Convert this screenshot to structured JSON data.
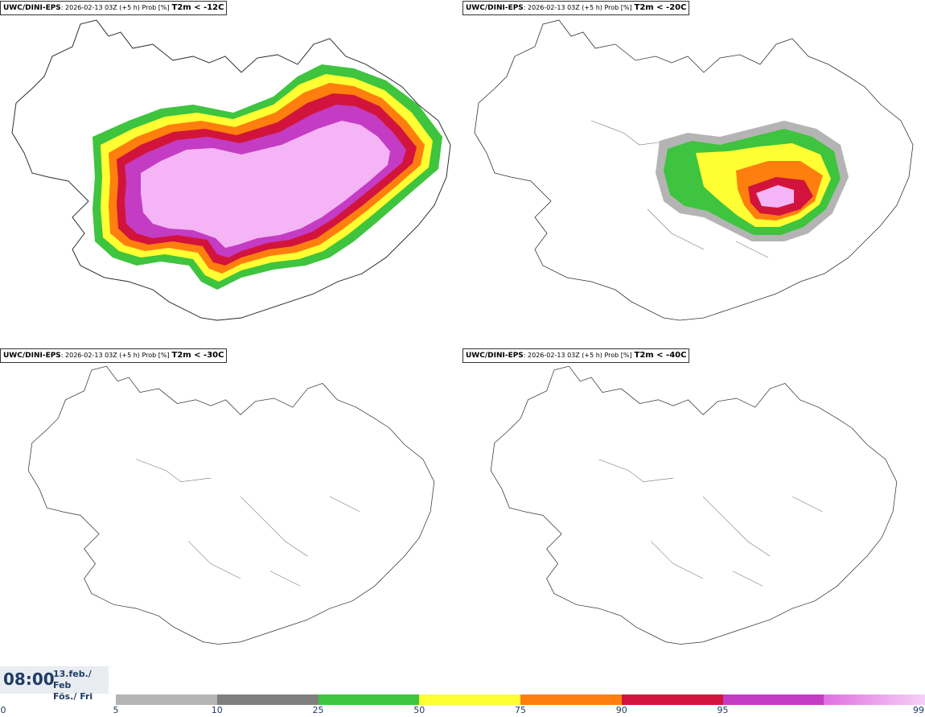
{
  "panels": [
    {
      "model": "UWC/DINI-EPS",
      "meta": ": 2026-02-13 03Z (+5 h) Prob [%]",
      "variable": "T2m < -12C"
    },
    {
      "model": "UWC/DINI-EPS",
      "meta": ": 2026-02-13 03Z (+5 h) Prob [%]",
      "variable": "T2m < -20C"
    },
    {
      "model": "UWC/DINI-EPS",
      "meta": ": 2026-02-13 03Z (+5 h) Prob [%]",
      "variable": "T2m < -30C"
    },
    {
      "model": "UWC/DINI-EPS",
      "meta": ": 2026-02-13 03Z (+5 h) Prob [%]",
      "variable": "T2m < -40C"
    }
  ],
  "time": {
    "clock": "08:00",
    "date_line": "13.feb./ Feb",
    "day_line": "Fös./ Fri"
  },
  "legend": {
    "ticks": [
      "0",
      "5",
      "10",
      "25",
      "50",
      "75",
      "90",
      "95",
      "99"
    ],
    "colors": [
      "#b4b4b4",
      "#7f7f7f",
      "#3ec43e",
      "#ffff33",
      "#ff7f0e",
      "#d2143c",
      "#c43cc4",
      "#f5b4f5"
    ]
  }
}
